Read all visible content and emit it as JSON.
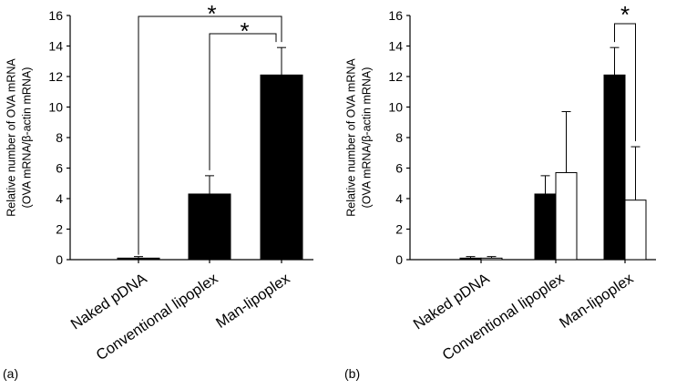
{
  "chart_data": [
    {
      "panel_label": "(a)",
      "type": "bar",
      "categories": [
        "Naked pDNA",
        "Conventional lipoplex",
        "Man-lipoplex"
      ],
      "ylabel_line1": "Relative number of OVA mRNA",
      "ylabel_line2": "(OVA mRNA/β-actin mRNA)",
      "ylim": [
        0,
        16
      ],
      "yticks": [
        0,
        2,
        4,
        6,
        8,
        10,
        12,
        14,
        16
      ],
      "series": [
        {
          "color": "#000000",
          "values": [
            0.1,
            4.3,
            12.1
          ],
          "errors": [
            0.1,
            1.2,
            1.8
          ]
        }
      ],
      "significance": [
        {
          "from": 0,
          "to": 2,
          "label": "*"
        },
        {
          "from": 1,
          "to": 2,
          "label": "*"
        }
      ]
    },
    {
      "panel_label": "(b)",
      "type": "bar",
      "categories": [
        "Naked pDNA",
        "Conventional lipoplex",
        "Man-lipoplex"
      ],
      "ylabel_line1": "Relative number of OVA mRNA",
      "ylabel_line2": "(OVA mRNA/β-actin mRNA)",
      "ylim": [
        0,
        16
      ],
      "yticks": [
        0,
        2,
        4,
        6,
        8,
        10,
        12,
        14,
        16
      ],
      "series": [
        {
          "color": "#000000",
          "values": [
            0.1,
            4.3,
            12.1
          ],
          "errors": [
            0.1,
            1.2,
            1.8
          ]
        },
        {
          "color": "#ffffff",
          "values": [
            0.1,
            5.7,
            3.9
          ],
          "errors": [
            0.1,
            4.0,
            3.5
          ]
        }
      ],
      "significance": [
        {
          "category": 2,
          "label": "*"
        }
      ]
    }
  ]
}
